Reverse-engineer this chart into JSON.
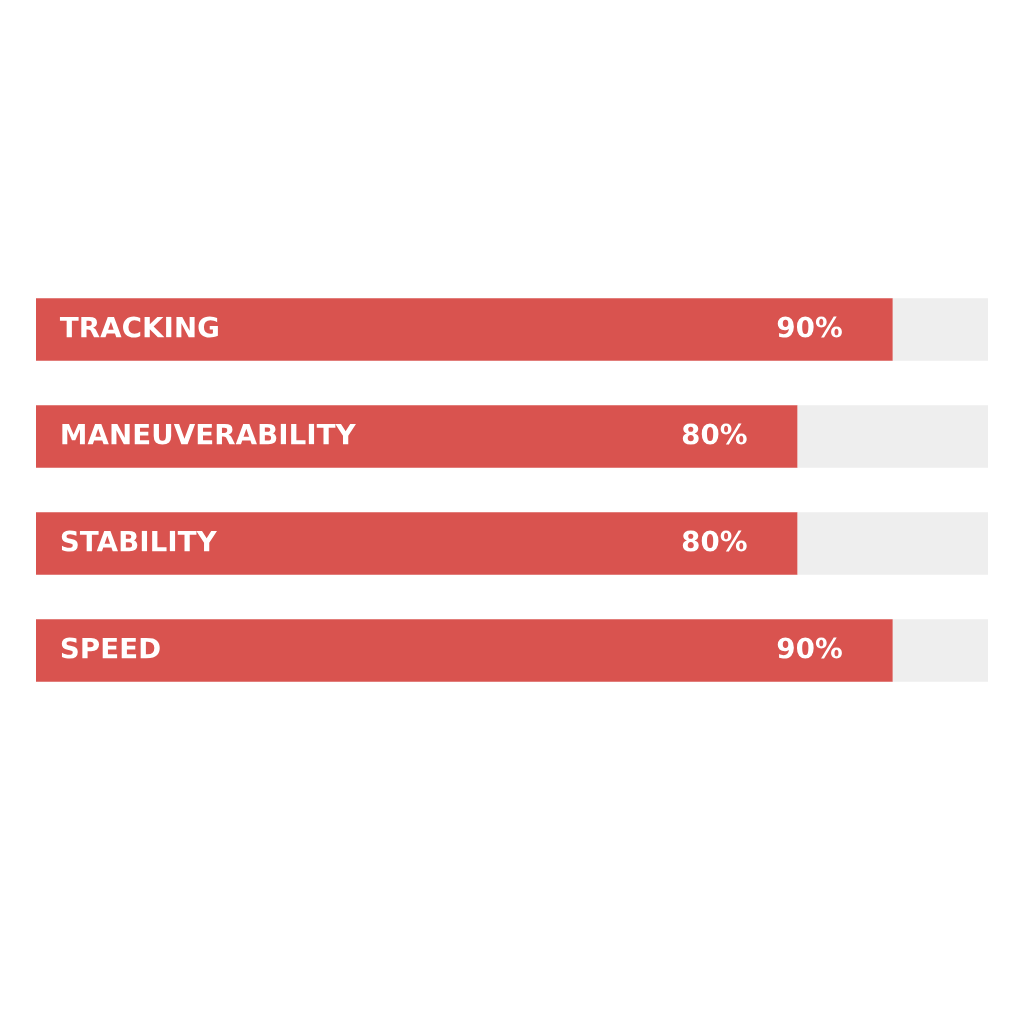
{
  "chart_data": {
    "type": "bar",
    "orientation": "horizontal",
    "stacked": true,
    "categories": [
      "TRACKING",
      "MANEUVERABILITY",
      "STABILITY",
      "SPEED"
    ],
    "series": [
      {
        "color": "#d9534f",
        "values": [
          90,
          80,
          80,
          90
        ],
        "value_labels": [
          "90%",
          "80%",
          "80%",
          "90%"
        ]
      },
      {
        "color": "#eeeeee",
        "values": [
          10,
          20,
          20,
          10
        ]
      }
    ],
    "xlim": [
      0,
      100
    ]
  }
}
